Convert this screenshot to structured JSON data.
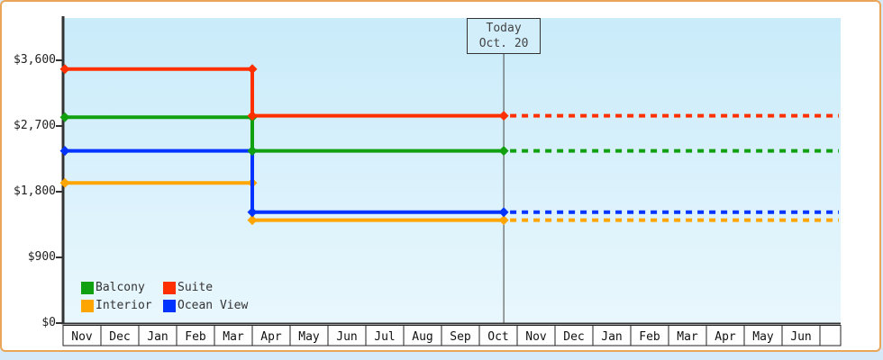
{
  "chart_data": {
    "type": "line",
    "subtype": "step-price-history",
    "title": "",
    "y_axis": {
      "tick_labels": [
        "$0",
        "$900",
        "$1,800",
        "$2,700",
        "$3,600"
      ],
      "tick_values": [
        0,
        900,
        1800,
        2700,
        3600
      ],
      "ylim": [
        0,
        3900
      ]
    },
    "x_axis": {
      "months": [
        "Nov",
        "Dec",
        "Jan",
        "Feb",
        "Mar",
        "Apr",
        "May",
        "Jun",
        "Jul",
        "Aug",
        "Sep",
        "Oct",
        "Nov",
        "Dec",
        "Jan",
        "Feb",
        "Mar",
        "Apr",
        "May",
        "Jun"
      ]
    },
    "today_marker": {
      "line1": "Today",
      "line2": "Oct. 20",
      "month_index": 11,
      "day": 20,
      "days_in_month": 31
    },
    "series": [
      {
        "name": "Balcony",
        "color": "#10A010",
        "initial_price": 2820,
        "price_after_drop": 2360,
        "drop_month_index": 5
      },
      {
        "name": "Suite",
        "color": "#FF3000",
        "initial_price": 3480,
        "price_after_drop": 2840,
        "drop_month_index": 5
      },
      {
        "name": "Interior",
        "color": "#FFA500",
        "initial_price": 1920,
        "price_after_drop": 1410,
        "drop_month_index": 5
      },
      {
        "name": "Ocean View",
        "color": "#0033FF",
        "initial_price": 2360,
        "price_after_drop": 1520,
        "drop_month_index": 5
      }
    ],
    "projection": "dotted horizontal lines continue at current price after today marker"
  },
  "colors": {
    "frame_border": "#E9A558",
    "page_bg": "#D6E9F8",
    "plot_bg_top": "#C9EBFA",
    "plot_bg_bottom": "#E9F7FD",
    "axis": "#333333",
    "month_box_bg": "#FFFFFF"
  }
}
